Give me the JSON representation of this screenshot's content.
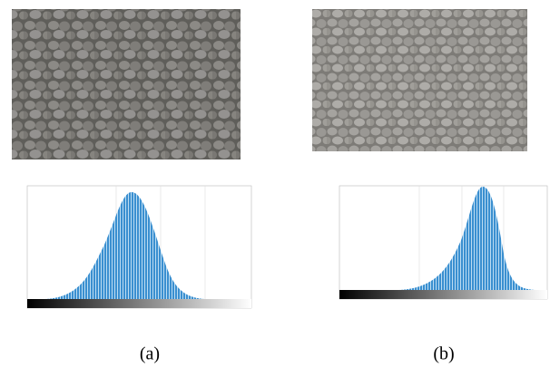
{
  "figures": [
    {
      "caption": "(a)"
    },
    {
      "caption": "(b)"
    }
  ]
}
